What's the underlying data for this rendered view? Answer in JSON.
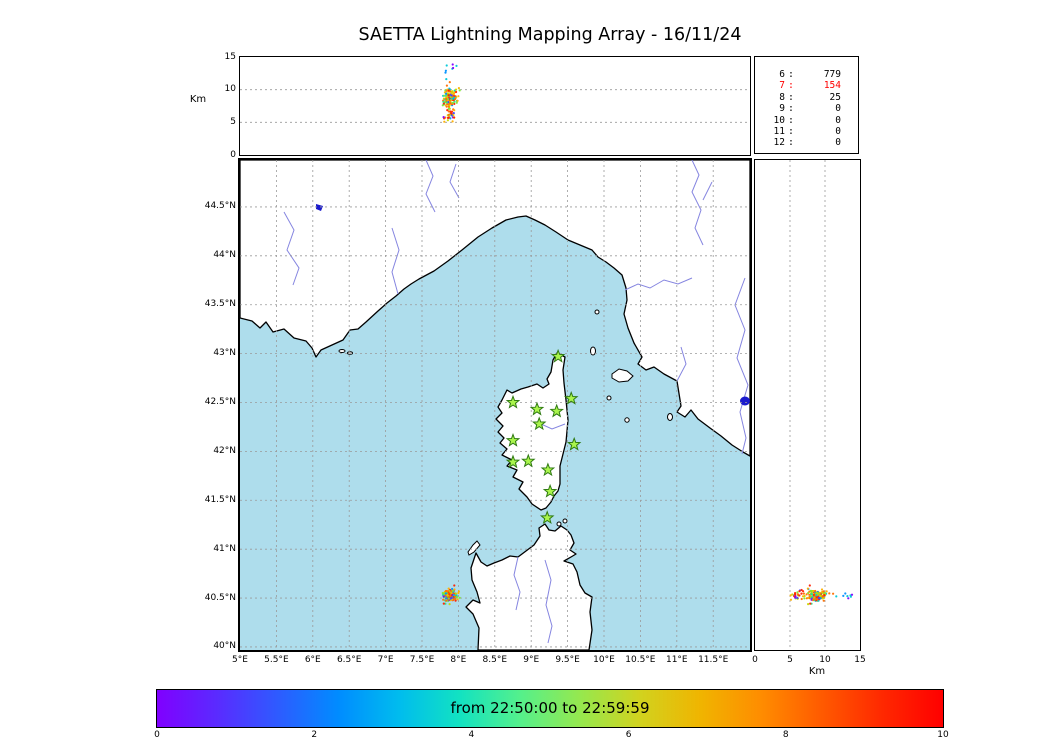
{
  "title": "SAETTA Lightning Mapping Array - 16/11/24",
  "colors": {
    "sea": "#aeddec",
    "land": "#ffffff",
    "coast": "#000000",
    "river": "#8585e0",
    "lake": "#1a1acd",
    "grid": "#9a9a9a",
    "station_fill": "#aaf54c",
    "station_edge": "#2f7a12",
    "highlight": "#ff0000"
  },
  "axes": {
    "alt_panel": {
      "ylabel": "Km",
      "yticks": [
        "15",
        "10",
        "5",
        "0"
      ]
    },
    "map": {
      "lat_ticks": [
        "44.5°N",
        "44°N",
        "43.5°N",
        "43°N",
        "42.5°N",
        "42°N",
        "41.5°N",
        "41°N",
        "40.5°N",
        "40°N"
      ],
      "lon_ticks": [
        "5°E",
        "5.5°E",
        "6°E",
        "6.5°E",
        "7°E",
        "7.5°E",
        "8°E",
        "8.5°E",
        "9°E",
        "9.5°E",
        "10°E",
        "10.5°E",
        "11°E",
        "11.5°E"
      ]
    },
    "right_panel": {
      "xticks": [
        "0",
        "5",
        "10",
        "15"
      ],
      "xlabel": "Km"
    }
  },
  "station_counts": {
    "rows": [
      {
        "station": "6",
        "count": "779",
        "highlight": false
      },
      {
        "station": "7",
        "count": "154",
        "highlight": true
      },
      {
        "station": "8",
        "count": "25",
        "highlight": false
      },
      {
        "station": "9",
        "count": "0",
        "highlight": false
      },
      {
        "station": "10",
        "count": "0",
        "highlight": false
      },
      {
        "station": "11",
        "count": "0",
        "highlight": false
      },
      {
        "station": "12",
        "count": "0",
        "highlight": false
      }
    ]
  },
  "colorbar": {
    "label": "from 22:50:00 to 22:59:59",
    "ticks": [
      "0",
      "2",
      "4",
      "6",
      "8",
      "10"
    ],
    "gradient": [
      "#8000ff",
      "#5a2bff",
      "#2e5bff",
      "#008cff",
      "#00bcee",
      "#12e2c2",
      "#54f08c",
      "#96e84e",
      "#d2d21e",
      "#f0b400",
      "#ff8c00",
      "#ff5a00",
      "#ff2800",
      "#ff0000"
    ]
  },
  "chart_data": {
    "type": "scatter",
    "title": "SAETTA Lightning Mapping Array - 16/11/24",
    "time_window": {
      "from": "22:50:00",
      "to": "22:59:59"
    },
    "colorbar_minutes_range": [
      0,
      10
    ],
    "map_extent": {
      "lon_deg_e": [
        5,
        12
      ],
      "lat_deg_n": [
        40,
        45
      ]
    },
    "altitude_km_range": [
      0,
      15
    ],
    "stations_min_table": [
      [
        "6",
        779
      ],
      [
        "7",
        154
      ],
      [
        "8",
        25
      ],
      [
        "9",
        0
      ],
      [
        "10",
        0
      ],
      [
        "11",
        0
      ],
      [
        "12",
        0
      ]
    ],
    "lma_stations_lonlat": [
      [
        9.37,
        42.97
      ],
      [
        8.75,
        42.5
      ],
      [
        9.08,
        42.43
      ],
      [
        9.35,
        42.41
      ],
      [
        9.55,
        42.54
      ],
      [
        9.11,
        42.28
      ],
      [
        8.75,
        42.11
      ],
      [
        9.59,
        42.07
      ],
      [
        8.75,
        41.89
      ],
      [
        8.96,
        41.9
      ],
      [
        9.23,
        41.81
      ],
      [
        9.26,
        41.59
      ],
      [
        9.22,
        41.32
      ]
    ],
    "flash_cluster": {
      "center_lon_deg_e": 7.88,
      "center_lat_deg_n": 40.53,
      "spread_lon_deg": 0.075,
      "spread_lat_deg": 0.05,
      "alt_modes_km": [
        {
          "alt": 8.8,
          "sigma": 1.1,
          "frac": 0.78
        },
        {
          "alt": 6.2,
          "sigma": 0.8,
          "frac": 0.16
        },
        {
          "alt": 12.8,
          "sigma": 0.9,
          "frac": 0.06
        }
      ],
      "n_points": 170,
      "late_fraction": 0.75,
      "palette": [
        "#8000ff",
        "#4040ff",
        "#0090ff",
        "#00c8d8",
        "#30e080",
        "#80e830",
        "#c8d800",
        "#ffb000",
        "#ff7000",
        "#ff2000"
      ]
    }
  }
}
